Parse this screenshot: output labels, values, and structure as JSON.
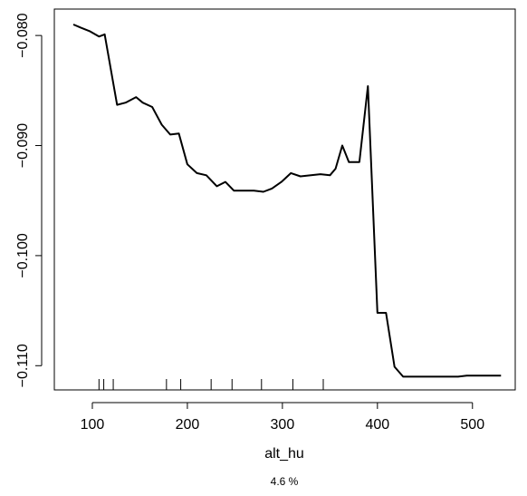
{
  "chart_data": {
    "type": "line",
    "xlabel": "alt_hu",
    "subtitle": "4.6 %",
    "xlim": [
      60,
      545
    ],
    "ylim": [
      -0.1122,
      -0.0776
    ],
    "x_ticks": [
      {
        "value": 100,
        "label": "100"
      },
      {
        "value": 200,
        "label": "200"
      },
      {
        "value": 300,
        "label": "300"
      },
      {
        "value": 400,
        "label": "400"
      },
      {
        "value": 500,
        "label": "500"
      }
    ],
    "y_ticks": [
      {
        "value": -0.08,
        "label": "−0.080"
      },
      {
        "value": -0.09,
        "label": "−0.090"
      },
      {
        "value": -0.1,
        "label": "−0.100"
      },
      {
        "value": -0.11,
        "label": "−0.110"
      }
    ],
    "rug": [
      107,
      112,
      122,
      178,
      193,
      225,
      247,
      278,
      311,
      343
    ],
    "series": [
      {
        "color": "#000000",
        "points": [
          [
            80,
            -0.079
          ],
          [
            88,
            -0.0793
          ],
          [
            97,
            -0.0796
          ],
          [
            107,
            -0.0801
          ],
          [
            113,
            -0.0799
          ],
          [
            126,
            -0.0863
          ],
          [
            135,
            -0.0861
          ],
          [
            146,
            -0.0856
          ],
          [
            153,
            -0.0861
          ],
          [
            163,
            -0.0865
          ],
          [
            173,
            -0.0881
          ],
          [
            182,
            -0.089
          ],
          [
            191,
            -0.0889
          ],
          [
            200,
            -0.0917
          ],
          [
            210,
            -0.0925
          ],
          [
            220,
            -0.0927
          ],
          [
            231,
            -0.0937
          ],
          [
            240,
            -0.0933
          ],
          [
            249,
            -0.0941
          ],
          [
            259,
            -0.0941
          ],
          [
            270,
            -0.0941
          ],
          [
            280,
            -0.0942
          ],
          [
            289,
            -0.0939
          ],
          [
            299,
            -0.0933
          ],
          [
            309,
            -0.0925
          ],
          [
            319,
            -0.0928
          ],
          [
            330,
            -0.0927
          ],
          [
            340,
            -0.0926
          ],
          [
            350,
            -0.0927
          ],
          [
            356,
            -0.0921
          ],
          [
            363,
            -0.09
          ],
          [
            370,
            -0.0915
          ],
          [
            376,
            -0.0915
          ],
          [
            381,
            -0.0915
          ],
          [
            390,
            -0.0846
          ],
          [
            400,
            -0.1052
          ],
          [
            409,
            -0.1052
          ],
          [
            418,
            -0.1101
          ],
          [
            427,
            -0.111
          ],
          [
            437,
            -0.111
          ],
          [
            447,
            -0.111
          ],
          [
            457,
            -0.111
          ],
          [
            466,
            -0.111
          ],
          [
            476,
            -0.111
          ],
          [
            485,
            -0.111
          ],
          [
            494,
            -0.1109
          ],
          [
            503,
            -0.1109
          ],
          [
            512,
            -0.1109
          ],
          [
            520,
            -0.1109
          ],
          [
            530,
            -0.1109
          ]
        ]
      }
    ]
  }
}
